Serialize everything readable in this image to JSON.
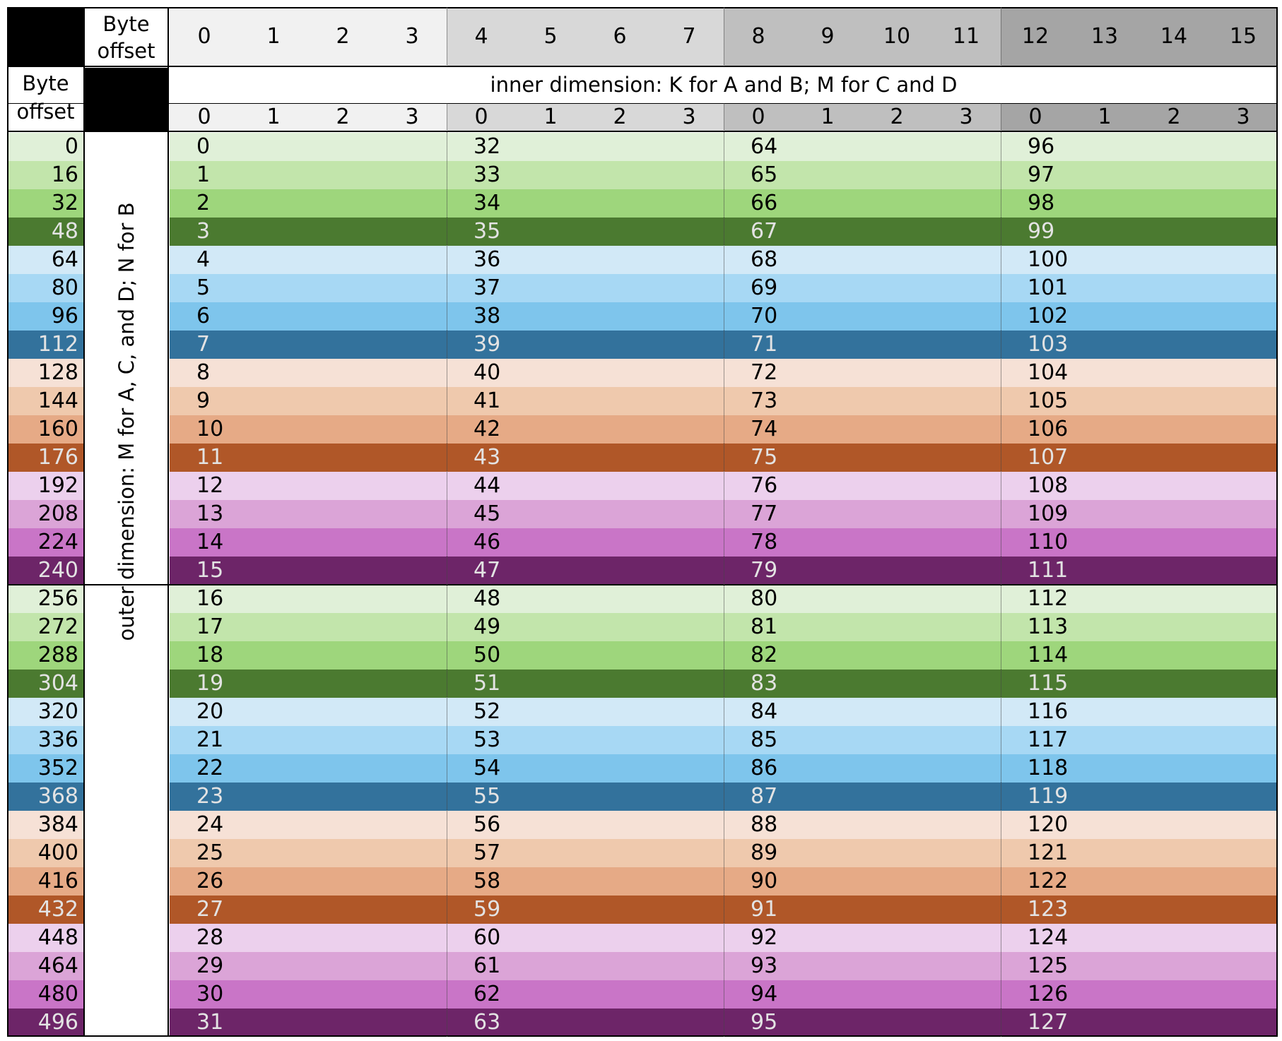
{
  "corner_label": "Byte offset",
  "column_numbers": [
    "0",
    "1",
    "2",
    "3",
    "4",
    "5",
    "6",
    "7",
    "8",
    "9",
    "10",
    "11",
    "12",
    "13",
    "14",
    "15"
  ],
  "row_header_label": "Byte offset",
  "inner_dimension_label": "inner dimension: K for A and B; M for C and D",
  "sub_column_numbers": [
    "0",
    "1",
    "2",
    "3",
    "0",
    "1",
    "2",
    "3",
    "0",
    "1",
    "2",
    "3",
    "0",
    "1",
    "2",
    "3"
  ],
  "outer_dimension_label": "outer dimension: M for A, C, and D; N for B",
  "row_byte_offsets": [
    "0",
    "16",
    "32",
    "48",
    "64",
    "80",
    "96",
    "112",
    "128",
    "144",
    "160",
    "176",
    "192",
    "208",
    "224",
    "240",
    "256",
    "272",
    "288",
    "304",
    "320",
    "336",
    "352",
    "368",
    "384",
    "400",
    "416",
    "432",
    "448",
    "464",
    "480",
    "496"
  ],
  "element_columns": [
    [
      "0",
      "1",
      "2",
      "3",
      "4",
      "5",
      "6",
      "7",
      "8",
      "9",
      "10",
      "11",
      "12",
      "13",
      "14",
      "15",
      "16",
      "17",
      "18",
      "19",
      "20",
      "21",
      "22",
      "23",
      "24",
      "25",
      "26",
      "27",
      "28",
      "29",
      "30",
      "31"
    ],
    [
      "32",
      "33",
      "34",
      "35",
      "36",
      "37",
      "38",
      "39",
      "40",
      "41",
      "42",
      "43",
      "44",
      "45",
      "46",
      "47",
      "48",
      "49",
      "50",
      "51",
      "52",
      "53",
      "54",
      "55",
      "56",
      "57",
      "58",
      "59",
      "60",
      "61",
      "62",
      "63"
    ],
    [
      "64",
      "65",
      "66",
      "67",
      "68",
      "69",
      "70",
      "71",
      "72",
      "73",
      "74",
      "75",
      "76",
      "77",
      "78",
      "79",
      "80",
      "81",
      "82",
      "83",
      "84",
      "85",
      "86",
      "87",
      "88",
      "89",
      "90",
      "91",
      "92",
      "93",
      "94",
      "95"
    ],
    [
      "96",
      "97",
      "98",
      "99",
      "100",
      "101",
      "102",
      "103",
      "104",
      "105",
      "106",
      "107",
      "108",
      "109",
      "110",
      "111",
      "112",
      "113",
      "114",
      "115",
      "116",
      "117",
      "118",
      "119",
      "120",
      "121",
      "122",
      "123",
      "124",
      "125",
      "126",
      "127"
    ]
  ],
  "colors": {
    "row_palette": [
      "#e0f0d8",
      "#c2e5ab",
      "#9ed67c",
      "#4b7a30",
      "#d2e9f7",
      "#a7d8f4",
      "#7ec5ec",
      "#33729c",
      "#f6e1d6",
      "#efc9ad",
      "#e6aa86",
      "#b05728",
      "#ecd0ed",
      "#dba4d7",
      "#c975c7",
      "#6d2568"
    ],
    "dark_text": "#000000",
    "light_text": "#e3e3e3",
    "column_group_shades": [
      "#f1f1f1",
      "#d8d8d8",
      "#bfbfbf",
      "#a5a5a5"
    ],
    "black_cell": "#000000"
  }
}
